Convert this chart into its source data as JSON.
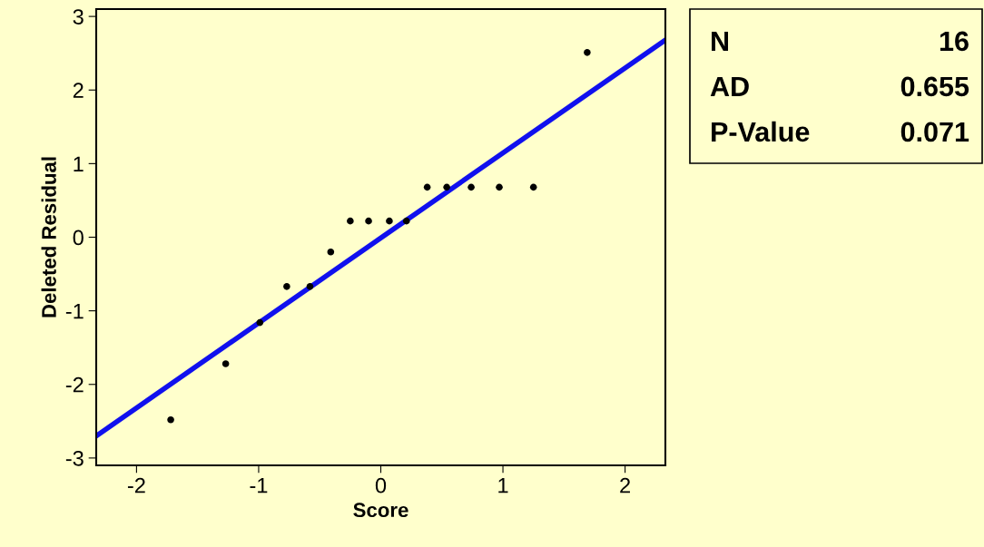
{
  "chart_data": {
    "type": "scatter",
    "xlabel": "Score",
    "ylabel": "Deleted Residual",
    "xlim": [
      -2.33,
      2.33
    ],
    "ylim": [
      -3.1,
      3.1
    ],
    "xticks": [
      -2,
      -1,
      0,
      1,
      2
    ],
    "yticks": [
      -3,
      -2,
      -1,
      0,
      1,
      2,
      3
    ],
    "grid": false,
    "legend": false,
    "series": [
      {
        "color": "#000000",
        "marker": "circle",
        "x": [
          -1.72,
          -1.27,
          -0.99,
          -0.77,
          -0.58,
          -0.41,
          -0.25,
          -0.1,
          0.07,
          0.21,
          0.38,
          0.54,
          0.74,
          0.97,
          1.25,
          1.69
        ],
        "values": [
          -2.48,
          -1.72,
          -1.16,
          -0.67,
          -0.67,
          -0.2,
          0.22,
          0.22,
          0.22,
          0.22,
          0.68,
          0.68,
          0.68,
          0.68,
          0.68,
          2.51
        ]
      },
      {
        "type": "line",
        "color": "#1010ee",
        "line_style": "solid",
        "marker": "none",
        "x": [
          -2.33,
          2.33
        ],
        "values": [
          -2.7,
          2.68
        ]
      }
    ],
    "annotations": [
      "N",
      "16",
      "AD",
      "0.655",
      "P-Value",
      "0.071"
    ]
  }
}
